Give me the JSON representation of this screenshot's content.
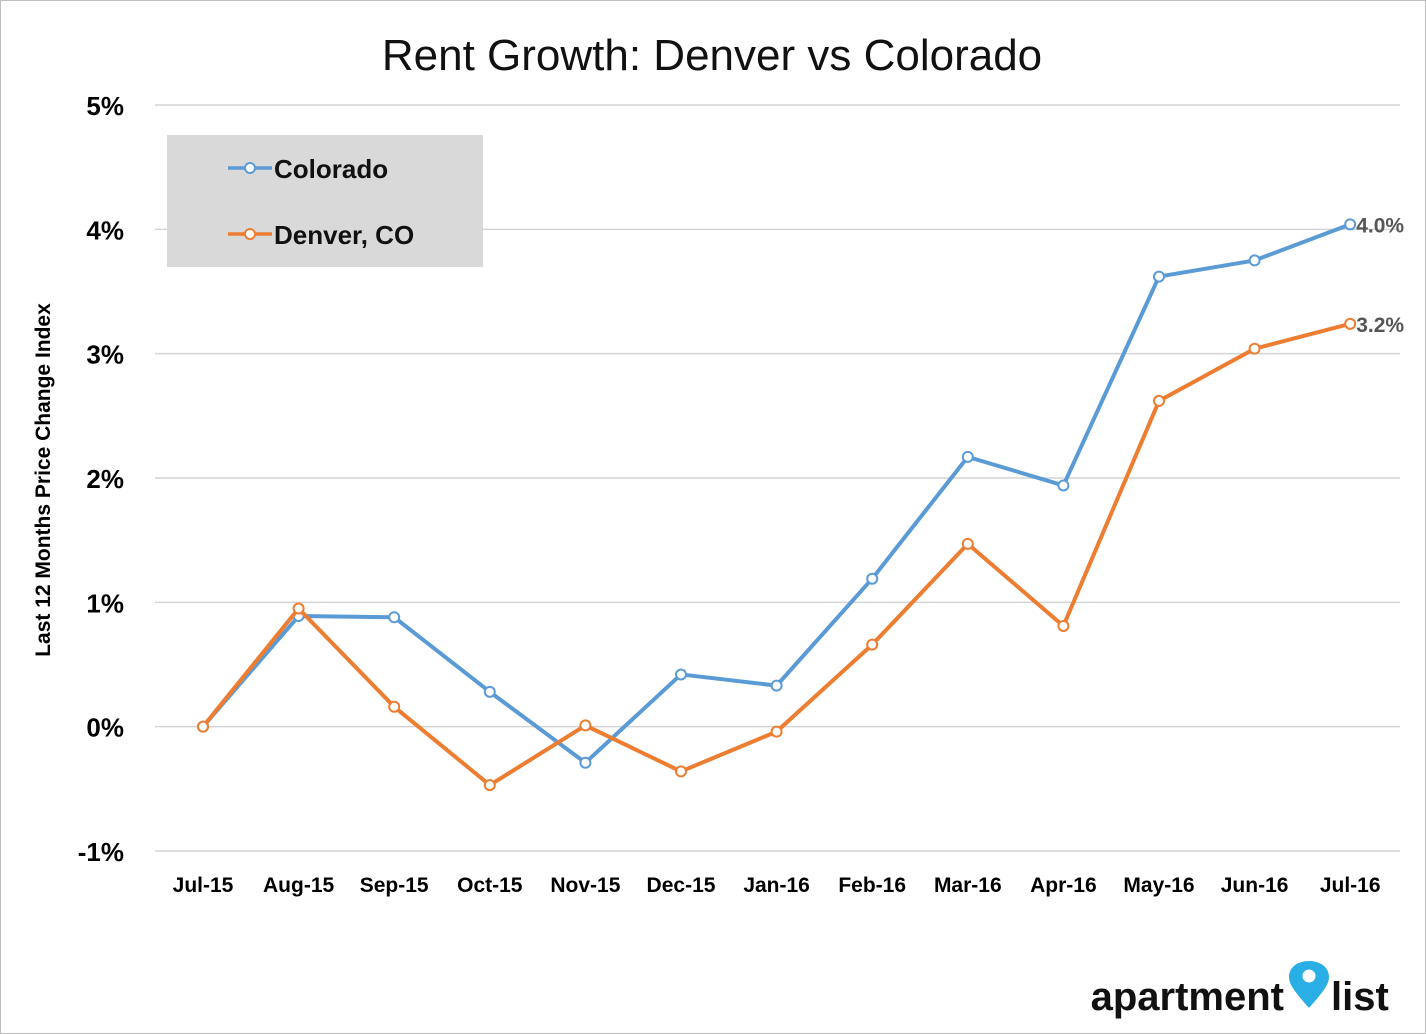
{
  "chart_data": {
    "type": "line",
    "title": "Rent Growth: Denver vs Colorado",
    "xlabel": "",
    "ylabel": "Last 12 Months Price Change Index",
    "categories": [
      "Jul-15",
      "Aug-15",
      "Sep-15",
      "Oct-15",
      "Nov-15",
      "Dec-15",
      "Jan-16",
      "Feb-16",
      "Mar-16",
      "Apr-16",
      "May-16",
      "Jun-16",
      "Jul-16"
    ],
    "ylim": [
      -1,
      5
    ],
    "yticks": [
      5,
      4,
      3,
      2,
      1,
      0,
      -1
    ],
    "ytick_labels": [
      "5%",
      "4%",
      "3%",
      "2%",
      "1%",
      "0%",
      "-1%"
    ],
    "grid": true,
    "legend_position": "top-left",
    "series": [
      {
        "name": "Colorado",
        "color": "#5b9bd5",
        "values": [
          0.0,
          0.89,
          0.88,
          0.28,
          -0.29,
          0.42,
          0.33,
          1.19,
          2.17,
          1.94,
          3.62,
          3.75,
          4.04
        ],
        "end_label": "4.0%"
      },
      {
        "name": "Denver, CO",
        "color": "#ed7d31",
        "values": [
          0.0,
          0.95,
          0.16,
          -0.47,
          0.01,
          -0.36,
          -0.04,
          0.66,
          1.47,
          0.81,
          2.62,
          3.04,
          3.24
        ],
        "end_label": "3.2%"
      }
    ]
  },
  "logo": {
    "text_left": "apartment",
    "text_right": "list",
    "icon": "map-pin-icon",
    "pin_color": "#29aee6"
  }
}
